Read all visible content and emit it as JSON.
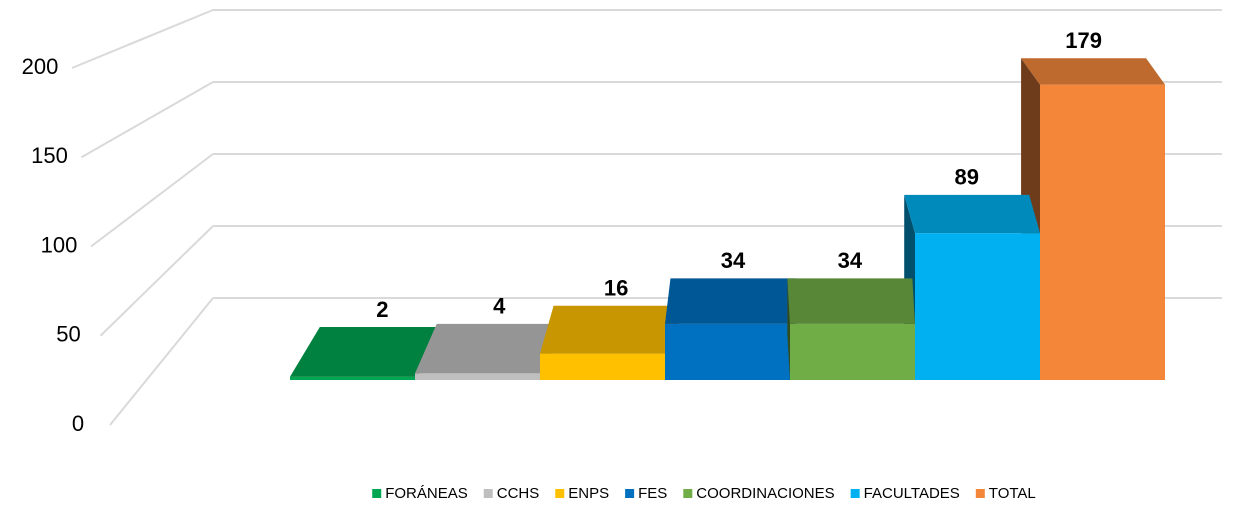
{
  "chart_data": {
    "type": "bar3d",
    "categories": [
      "FORÁNEAS",
      "CCHS",
      "ENPS",
      "FES",
      "COORDINACIONES",
      "FACULTADES",
      "TOTAL"
    ],
    "values": [
      2,
      4,
      16,
      34,
      34,
      89,
      179
    ],
    "colors": [
      "#00a651",
      "#bfbfbf",
      "#ffc000",
      "#0070c0",
      "#70ad47",
      "#00b0f0",
      "#f4863a"
    ],
    "ylim": [
      0,
      200
    ],
    "yticks": [
      0,
      50,
      100,
      150,
      200
    ],
    "grid": true,
    "legend": "bottom"
  }
}
